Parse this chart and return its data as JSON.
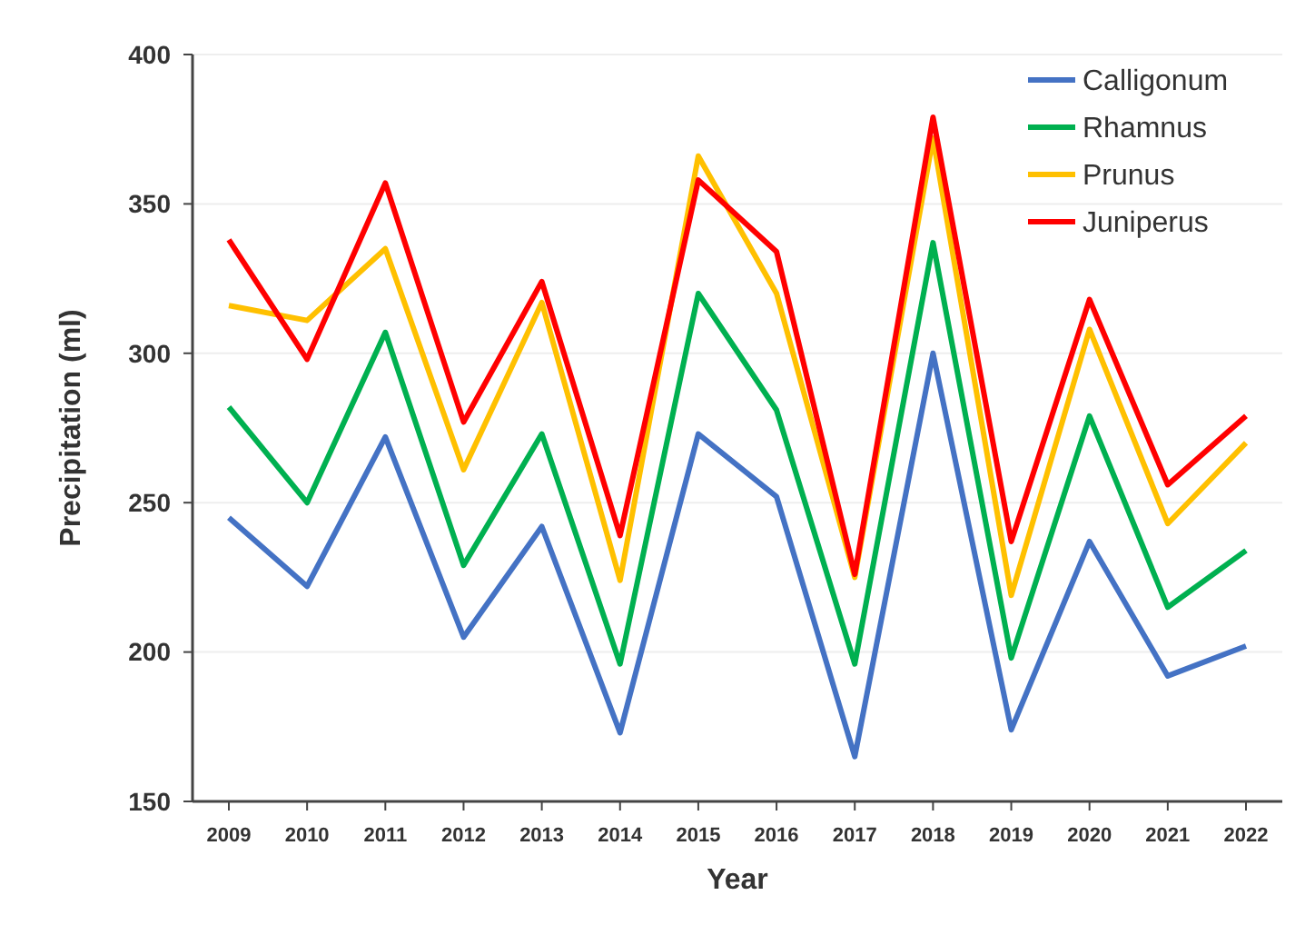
{
  "chart_data": {
    "type": "line",
    "xlabel": "Year",
    "ylabel": "Precipitation (ml)",
    "categories": [
      "2009",
      "2010",
      "2011",
      "2012",
      "2013",
      "2014",
      "2015",
      "2016",
      "2017",
      "2018",
      "2019",
      "2020",
      "2021",
      "2022"
    ],
    "ylim": [
      150,
      400
    ],
    "yticks": [
      150,
      200,
      250,
      300,
      350,
      400
    ],
    "grid": "y",
    "legend": "top right",
    "marker": "none",
    "line_style": "solid",
    "series": [
      {
        "name": "Calligonum",
        "color": "#4472c4",
        "values": [
          245,
          222,
          272,
          205,
          242,
          173,
          273,
          252,
          165,
          300,
          174,
          237,
          192,
          202
        ]
      },
      {
        "name": "Rhamnus",
        "color": "#00b050",
        "values": [
          282,
          250,
          307,
          229,
          273,
          196,
          320,
          281,
          196,
          337,
          198,
          279,
          215,
          234
        ]
      },
      {
        "name": "Prunus",
        "color": "#ffc000",
        "values": [
          316,
          311,
          335,
          261,
          317,
          224,
          366,
          320,
          225,
          372,
          219,
          308,
          243,
          270
        ]
      },
      {
        "name": "Juniperus",
        "color": "#ff0000",
        "values": [
          338,
          298,
          357,
          277,
          324,
          239,
          358,
          334,
          226,
          379,
          237,
          318,
          256,
          279
        ]
      }
    ]
  }
}
